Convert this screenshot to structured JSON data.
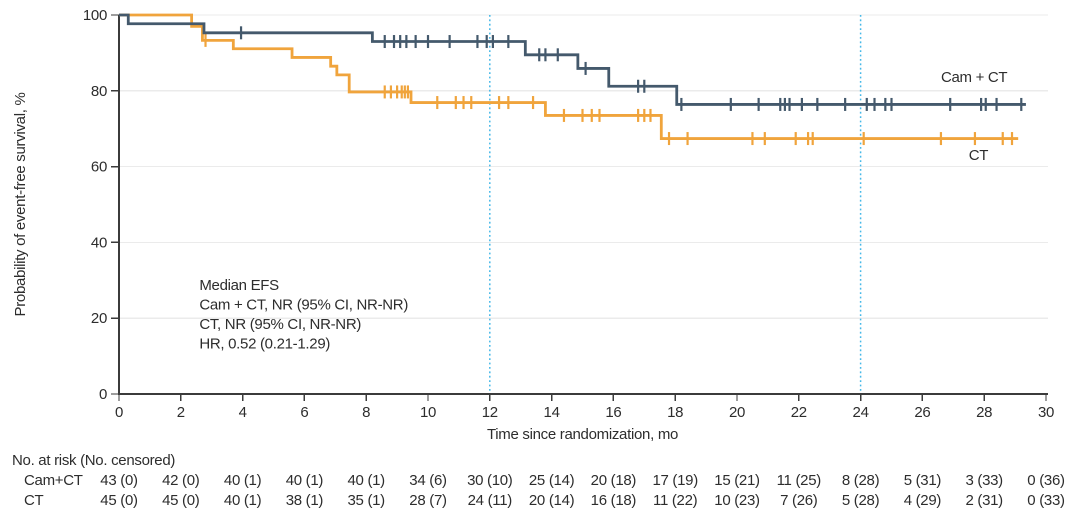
{
  "colors": {
    "cam_ct": "#44596c",
    "ct": "#f0a43c",
    "reference_line": "#45b8e8",
    "grid": "#ebebeb",
    "axis": "#3b3b3b",
    "text": "#2d2d2d"
  },
  "chart_data": {
    "type": "line",
    "subtype": "kaplan-meier-step",
    "title": "",
    "xlabel": "Time since randomization, mo",
    "ylabel": "Probability of event-free survival, %",
    "xlim": [
      0,
      30
    ],
    "ylim": [
      0,
      100
    ],
    "xticks": [
      0,
      2,
      4,
      6,
      8,
      10,
      12,
      14,
      16,
      18,
      20,
      22,
      24,
      26,
      28,
      30
    ],
    "yticks": [
      0,
      20,
      40,
      60,
      80,
      100
    ],
    "grid": "horizontal",
    "reference_lines_x": [
      12,
      24
    ],
    "series": [
      {
        "key": "ct",
        "name": "CT",
        "color_key": "ct",
        "start_value": 100,
        "end_time": 29.1,
        "steps": [
          [
            2.35,
            97.0
          ],
          [
            2.7,
            93.3
          ],
          [
            3.7,
            91.1
          ],
          [
            5.6,
            88.8
          ],
          [
            6.85,
            86.5
          ],
          [
            7.05,
            84.2
          ],
          [
            7.45,
            79.7
          ],
          [
            9.45,
            76.9
          ],
          [
            13.8,
            73.5
          ],
          [
            17.55,
            67.4
          ]
        ],
        "censor_marks": [
          [
            2.8,
            93.3
          ],
          [
            8.6,
            79.7
          ],
          [
            8.8,
            79.7
          ],
          [
            9.0,
            79.7
          ],
          [
            9.15,
            79.7
          ],
          [
            9.25,
            79.7
          ],
          [
            9.35,
            79.7
          ],
          [
            10.3,
            76.9
          ],
          [
            10.9,
            76.9
          ],
          [
            11.15,
            76.9
          ],
          [
            11.4,
            76.9
          ],
          [
            12.3,
            76.9
          ],
          [
            12.6,
            76.9
          ],
          [
            13.4,
            76.9
          ],
          [
            14.4,
            73.5
          ],
          [
            15.0,
            73.5
          ],
          [
            15.3,
            73.5
          ],
          [
            15.55,
            73.5
          ],
          [
            16.8,
            73.5
          ],
          [
            17.0,
            73.5
          ],
          [
            17.2,
            73.5
          ],
          [
            17.8,
            67.4
          ],
          [
            18.4,
            67.4
          ],
          [
            20.5,
            67.4
          ],
          [
            20.9,
            67.4
          ],
          [
            21.9,
            67.4
          ],
          [
            22.3,
            67.4
          ],
          [
            22.45,
            67.4
          ],
          [
            24.1,
            67.4
          ],
          [
            26.6,
            67.4
          ],
          [
            27.7,
            67.4
          ],
          [
            28.6,
            67.4
          ],
          [
            28.9,
            67.4
          ]
        ],
        "label": "CT",
        "label_anchor": {
          "t": 27.5,
          "p": 61.7
        }
      },
      {
        "key": "cam-ct",
        "name": "Cam + CT",
        "color_key": "cam_ct",
        "start_value": 100,
        "end_time": 29.35,
        "steps": [
          [
            0.3,
            97.7
          ],
          [
            2.75,
            95.3
          ],
          [
            8.2,
            93.0
          ],
          [
            13.15,
            89.5
          ],
          [
            14.85,
            85.9
          ],
          [
            15.85,
            81.2
          ],
          [
            18.05,
            76.4
          ]
        ],
        "censor_marks": [
          [
            3.95,
            95.3
          ],
          [
            8.6,
            93.0
          ],
          [
            8.9,
            93.0
          ],
          [
            9.1,
            93.0
          ],
          [
            9.3,
            93.0
          ],
          [
            9.6,
            93.0
          ],
          [
            10.0,
            93.0
          ],
          [
            10.7,
            93.0
          ],
          [
            11.6,
            93.0
          ],
          [
            11.9,
            93.0
          ],
          [
            12.1,
            93.0
          ],
          [
            12.6,
            93.0
          ],
          [
            13.6,
            89.5
          ],
          [
            13.8,
            89.5
          ],
          [
            14.2,
            89.5
          ],
          [
            15.1,
            85.9
          ],
          [
            16.8,
            81.2
          ],
          [
            17.0,
            81.2
          ],
          [
            18.2,
            76.4
          ],
          [
            19.8,
            76.4
          ],
          [
            20.7,
            76.4
          ],
          [
            21.4,
            76.4
          ],
          [
            21.55,
            76.4
          ],
          [
            21.7,
            76.4
          ],
          [
            22.1,
            76.4
          ],
          [
            22.6,
            76.4
          ],
          [
            23.5,
            76.4
          ],
          [
            24.2,
            76.4
          ],
          [
            24.45,
            76.4
          ],
          [
            24.8,
            76.4
          ],
          [
            25.0,
            76.4
          ],
          [
            26.9,
            76.4
          ],
          [
            27.9,
            76.4
          ],
          [
            28.05,
            76.4
          ],
          [
            28.4,
            76.4
          ],
          [
            29.2,
            76.4
          ]
        ],
        "label": "Cam + CT",
        "label_anchor": {
          "t": 26.6,
          "p": 82.3
        }
      }
    ],
    "annotation": {
      "lines": [
        "Median EFS",
        "Cam + CT, NR (95% CI, NR-NR)",
        "CT, NR (95% CI, NR-NR)",
        "HR, 0.52 (0.21-1.29)"
      ],
      "t": 2.6,
      "p": 27.4
    },
    "risk_table": {
      "header": "No. at risk (No. censored)",
      "times": [
        0,
        2,
        4,
        6,
        8,
        10,
        12,
        14,
        16,
        18,
        20,
        22,
        24,
        26,
        28,
        30
      ],
      "rows": [
        {
          "key": "cam-ct",
          "label": "Cam+CT",
          "values": [
            "43 (0)",
            "42 (0)",
            "40 (1)",
            "40 (1)",
            "40 (1)",
            "34 (6)",
            "30 (10)",
            "25 (14)",
            "20 (18)",
            "17 (19)",
            "15 (21)",
            "11 (25)",
            "8 (28)",
            "5 (31)",
            "3 (33)",
            "0 (36)"
          ]
        },
        {
          "key": "ct",
          "label": "CT",
          "values": [
            "45 (0)",
            "45 (0)",
            "40 (1)",
            "38 (1)",
            "35 (1)",
            "28 (7)",
            "24 (11)",
            "20 (14)",
            "16 (18)",
            "11 (22)",
            "10 (23)",
            "7 (26)",
            "5 (28)",
            "4 (29)",
            "2 (31)",
            "0 (33)"
          ]
        }
      ]
    }
  }
}
